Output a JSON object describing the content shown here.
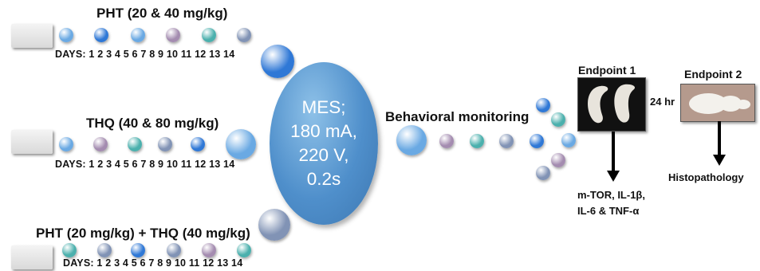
{
  "groups": [
    {
      "title": "PHT (20 & 40 mg/kg)",
      "days": "DAYS: 1 2 3 4 5 6 7 8 9 10 11 12 13 14"
    },
    {
      "title": "THQ (40 & 80 mg/kg)",
      "days": "DAYS: 1 2 3 4 5 6 7 8 9 10 11 12 13 14"
    },
    {
      "title": "PHT (20 mg/kg) + THQ (40 mg/kg)",
      "days": "DAYS: 1 2 3 4 5 6 7 8 9 10 11 12 13 14"
    }
  ],
  "mes": {
    "text": "MES;\n180 mA,\n220 V,\n0.2s"
  },
  "behavior": {
    "label": "Behavioral monitoring"
  },
  "endpoint1": {
    "title": "Endpoint 1",
    "markers": "m-TOR, IL-1β,\nIL-6 & TNF-α"
  },
  "endpoint2": {
    "title": "Endpoint 2",
    "analysis": "Histopathology"
  },
  "interval": {
    "label": "24 hr"
  },
  "colors": {
    "dot_blue": "#2f78d6",
    "dot_light_blue": "#6aa9e3",
    "dot_mauve": "#a48cb0",
    "dot_teal": "#4bb0ad",
    "dot_slate": "#8193b5",
    "ellipse": "#4f8fcb"
  }
}
